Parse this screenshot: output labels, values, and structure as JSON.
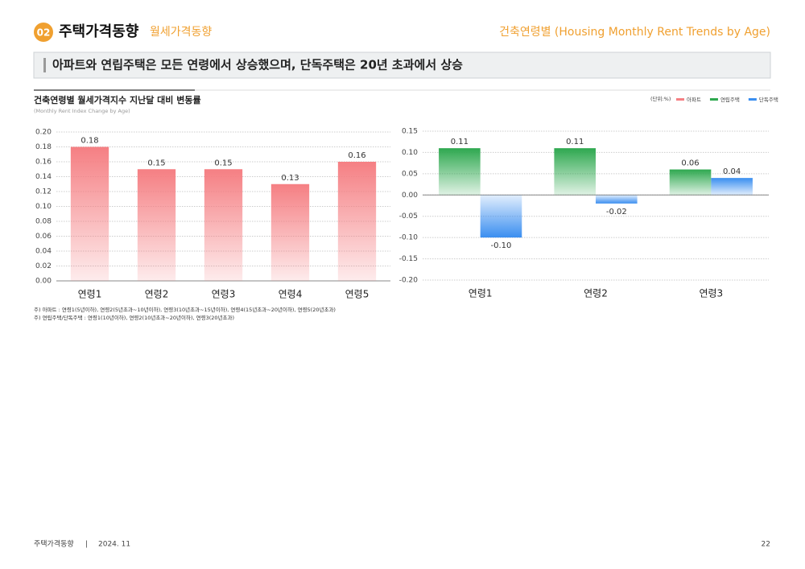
{
  "header": {
    "badge": "02",
    "title": "주택가격동향",
    "subtitle": "월세가격동향",
    "right_title": "건축연령별 (Housing Monthly Rent Trends by Age)"
  },
  "headline": "아파트와 연립주택은 모든 연령에서 상승했으며, 단독주택은 20년 초과에서 상승",
  "section": {
    "title": "건축연령별 월세가격지수 지난달 대비 변동률",
    "subtitle": "(Monthly Rent Index Change by Age)",
    "unit": "(단위:%)"
  },
  "chart_data": [
    {
      "type": "bar",
      "categories": [
        "연령1",
        "연령2",
        "연령3",
        "연령4",
        "연령5"
      ],
      "series": [
        {
          "name": "아파트",
          "color": "#f57f83",
          "values": [
            0.18,
            0.15,
            0.15,
            0.13,
            0.16
          ],
          "value_labels": [
            "0.18",
            "0.15",
            "0.15",
            "0.13",
            "0.16"
          ]
        }
      ],
      "ylim": [
        0,
        0.2
      ],
      "yticks": [
        {
          "value": 0,
          "label": "0.00"
        },
        {
          "value": 0.02,
          "label": "0.02"
        },
        {
          "value": 0.04,
          "label": "0.04"
        },
        {
          "value": 0.06,
          "label": "0.06"
        },
        {
          "value": 0.08,
          "label": "0.08"
        },
        {
          "value": 0.1,
          "label": "0.10"
        },
        {
          "value": 0.12,
          "label": "0.12"
        },
        {
          "value": 0.14,
          "label": "0.14"
        },
        {
          "value": 0.16,
          "label": "0.16"
        },
        {
          "value": 0.18,
          "label": "0.18"
        },
        {
          "value": 0.2,
          "label": "0.20"
        }
      ],
      "grid": true
    },
    {
      "type": "bar",
      "categories": [
        "연령1",
        "연령2",
        "연령3"
      ],
      "series": [
        {
          "name": "연립주택",
          "color": "#2ea84f",
          "values": [
            0.11,
            0.11,
            0.06
          ],
          "value_labels": [
            "0.11",
            "0.11",
            "0.06"
          ]
        },
        {
          "name": "단독주택",
          "color": "#3a8ef0",
          "values": [
            -0.1,
            -0.02,
            0.04
          ],
          "value_labels": [
            "-0.10",
            "-0.02",
            "0.04"
          ]
        }
      ],
      "ylim": [
        -0.2,
        0.15
      ],
      "yticks": [
        {
          "value": -0.2,
          "label": "-0.20"
        },
        {
          "value": -0.15,
          "label": "-0.15"
        },
        {
          "value": -0.1,
          "label": "-0.10"
        },
        {
          "value": -0.05,
          "label": "-0.05"
        },
        {
          "value": 0,
          "label": "0.00"
        },
        {
          "value": 0.05,
          "label": "0.05"
        },
        {
          "value": 0.1,
          "label": "0.10"
        },
        {
          "value": 0.15,
          "label": "0.15"
        }
      ],
      "grid": true
    }
  ],
  "notes": [
    "주) 아파트 : 연령1(5년이하), 연령2(5년초과~10년이하), 연령3(10년초과~15년이하), 연령4(15년초과~20년이하), 연령5(20년초과)",
    "주) 연립주택/단독주택 : 연령1(10년이하), 연령2(10년초과~20년이하), 연령3(20년초과)"
  ],
  "footer": {
    "left": "주택가격동향",
    "date": "2024. 11",
    "page": "22"
  }
}
